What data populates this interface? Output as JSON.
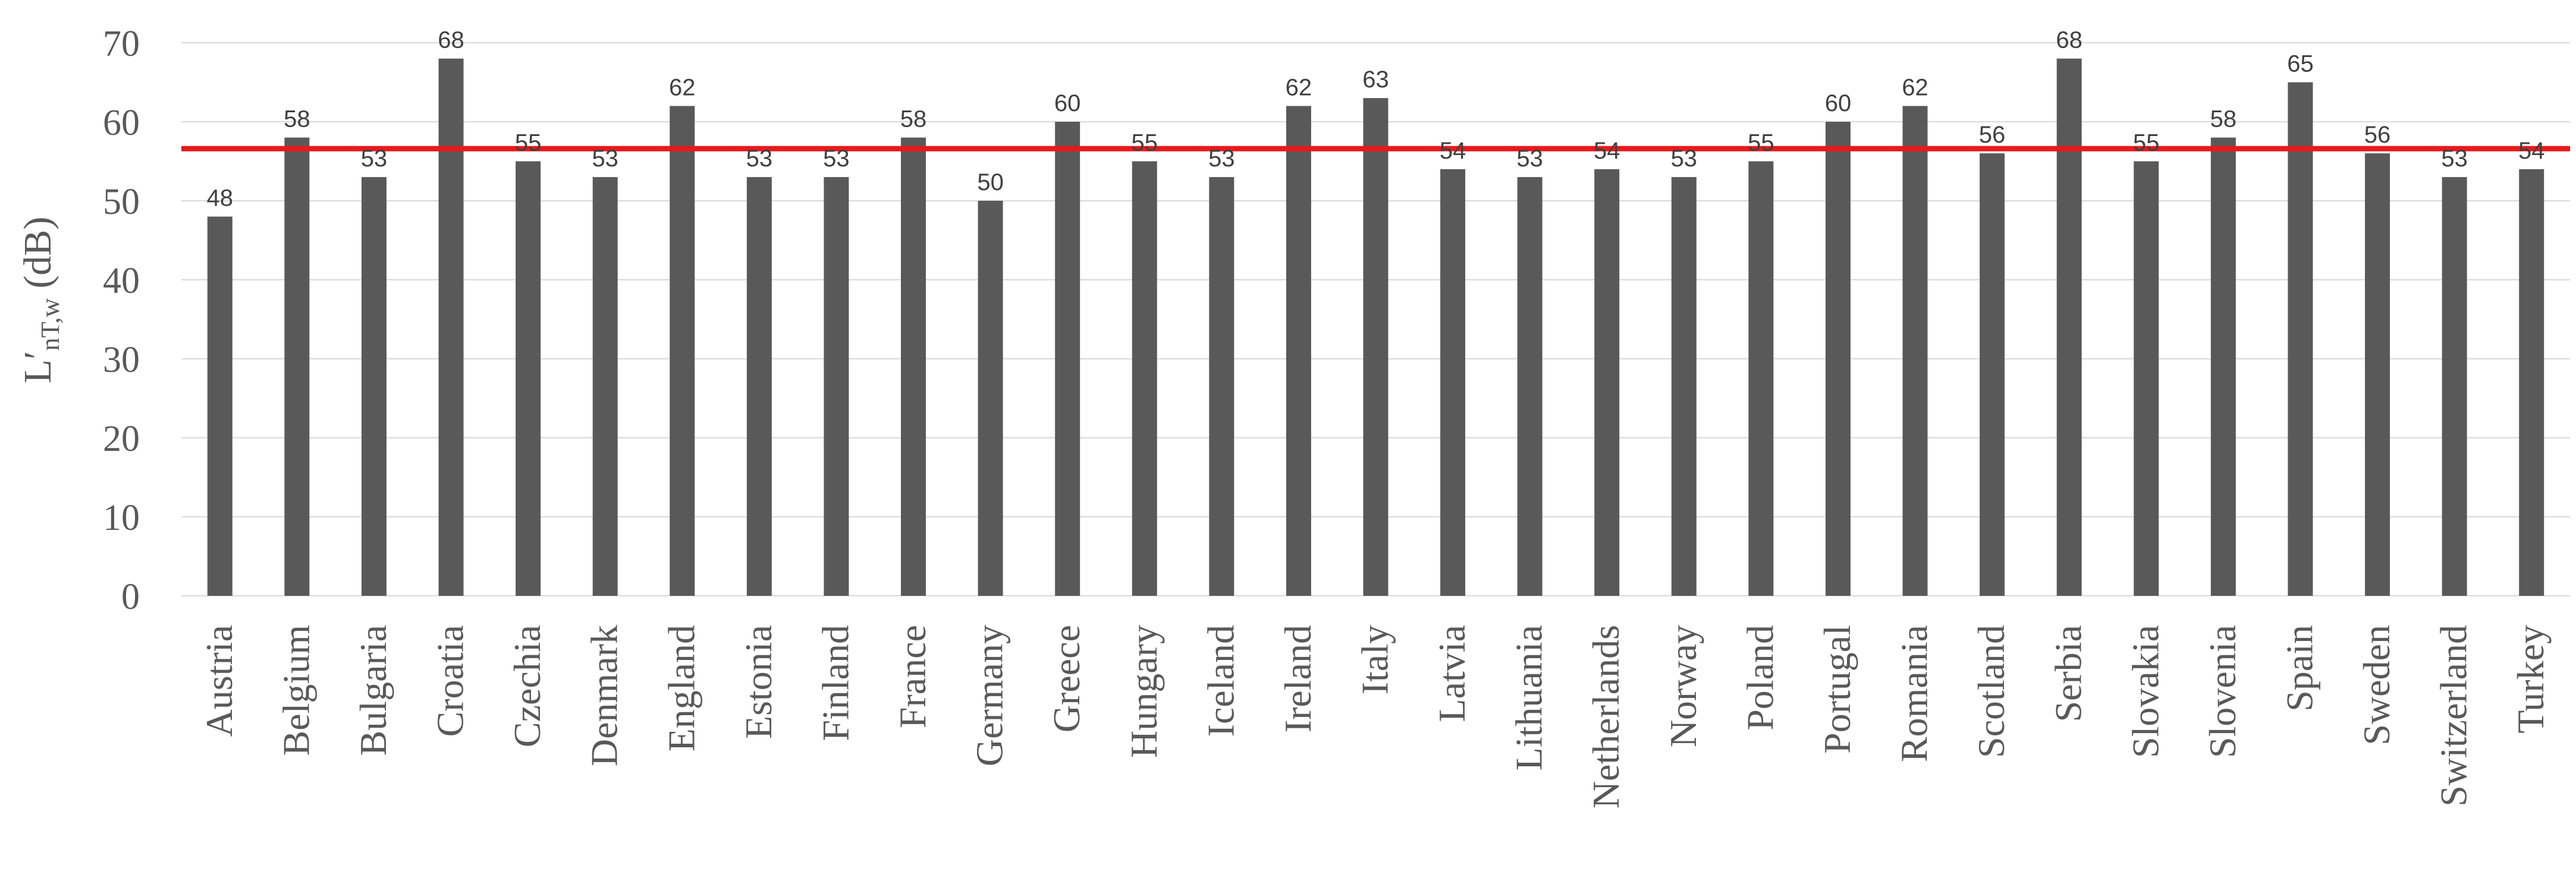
{
  "chart_data": {
    "type": "bar",
    "title": "",
    "xlabel": "",
    "ylabel": {
      "main": "L′",
      "subscript": "nT,w",
      "unit": " (dB)"
    },
    "ylim": [
      0,
      70
    ],
    "yticks": [
      0,
      10,
      20,
      30,
      40,
      50,
      60,
      70
    ],
    "grid": true,
    "legend": "none",
    "reference_line": {
      "y": 56.6,
      "color": "#e8191b"
    },
    "bar_color": "#595959",
    "categories": [
      "Austria",
      "Belgium",
      "Bulgaria",
      "Croatia",
      "Czechia",
      "Denmark",
      "England",
      "Estonia",
      "Finland",
      "France",
      "Germany",
      "Greece",
      "Hungary",
      "Iceland",
      "Ireland",
      "Italy",
      "Latvia",
      "Lithuania",
      "Netherlands",
      "Norway",
      "Poland",
      "Portugal",
      "Romania",
      "Scotland",
      "Serbia",
      "Slovakia",
      "Slovenia",
      "Spain",
      "Sweden",
      "Switzerland",
      "Turkey"
    ],
    "values": [
      48,
      58,
      53,
      68,
      55,
      53,
      62,
      53,
      53,
      58,
      50,
      60,
      55,
      53,
      62,
      63,
      54,
      53,
      54,
      53,
      55,
      60,
      62,
      56,
      68,
      55,
      58,
      65,
      56,
      53,
      54
    ]
  }
}
